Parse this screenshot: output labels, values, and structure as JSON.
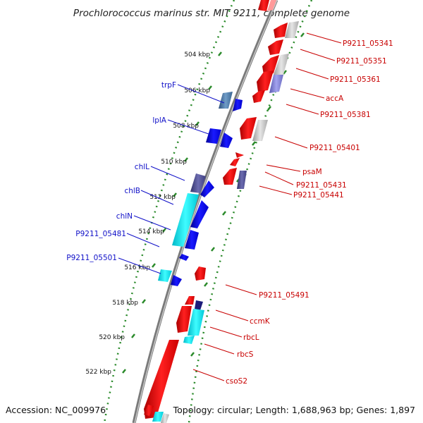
{
  "title": "Prochlorococcus marinus str. MIT 9211, complete genome",
  "footer": {
    "accession": "Accession: NC_009976",
    "topology": "Topology: circular; Length: 1,688,963 bp; Genes: 1,897"
  },
  "ticks": [
    "504 kbp",
    "506 kbp",
    "508 kbp",
    "510 kbp",
    "512 kbp",
    "514 kbp",
    "516 kbp",
    "518 kbp",
    "520 kbp",
    "522 kbp"
  ],
  "left_genes": [
    "trpF",
    "lplA",
    "chlL",
    "chlB",
    "chlN",
    "P9211_05481",
    "P9211_05501"
  ],
  "right_genes": [
    "P9211_05341",
    "P9211_05351",
    "P9211_05361",
    "accA",
    "P9211_05381",
    "P9211_05401",
    "psaM",
    "P9211_05431",
    "P9211_05441",
    "P9211_05491",
    "ccmK",
    "rbcL",
    "rbcS",
    "csoS2"
  ],
  "colors": {
    "forward_strand": "#0000e6",
    "reverse_strand": "#ee0000",
    "highlight": "#00e0e8",
    "muted": "#7f7fbf",
    "gray_gene": "#bdbdbd",
    "backbone": "#7a7a7a",
    "tick_marks": "#2a8a2a",
    "left_label": "#1010c8",
    "right_label": "#c80000"
  }
}
